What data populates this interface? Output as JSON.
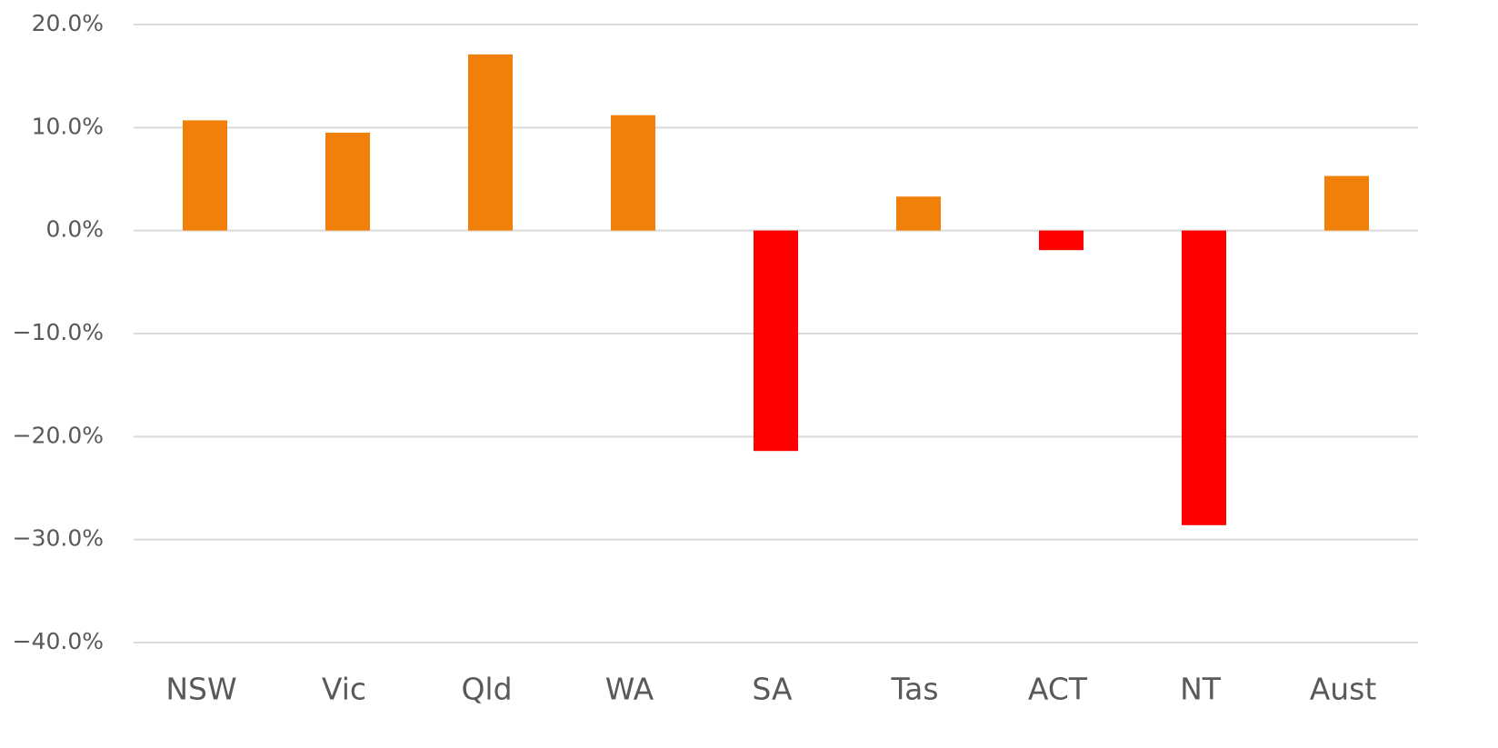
{
  "chart_data": {
    "type": "bar",
    "categories": [
      "NSW",
      "Vic",
      "Qld",
      "WA",
      "SA",
      "Tas",
      "ACT",
      "NT",
      "Aust"
    ],
    "values": [
      10.7,
      9.5,
      17.1,
      11.2,
      -21.4,
      3.3,
      -1.9,
      -28.6,
      5.3
    ],
    "colors": [
      "#f0800a",
      "#f0800a",
      "#f0800a",
      "#f0800a",
      "#ff0000",
      "#f0800a",
      "#ff0000",
      "#ff0000",
      "#f0800a"
    ],
    "ylim": [
      -40,
      20
    ],
    "yticks": [
      {
        "value": -40,
        "label": "−40.0%"
      },
      {
        "value": -30,
        "label": "−30.0%"
      },
      {
        "value": -20,
        "label": "−20.0%"
      },
      {
        "value": -10,
        "label": "−10.0%"
      },
      {
        "value": 0,
        "label": "0.0%"
      },
      {
        "value": 10,
        "label": "10.0%"
      },
      {
        "value": 20,
        "label": "20.0%"
      }
    ],
    "grid": true
  }
}
